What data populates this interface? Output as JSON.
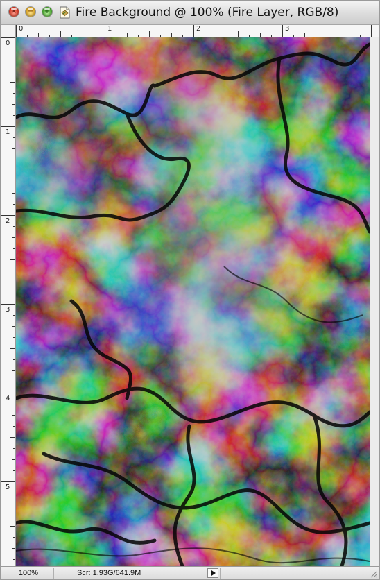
{
  "window": {
    "title": "Fire Background @ 100% (Fire Layer, RGB/8)"
  },
  "title_bar_buttons": {
    "close_icon": "close-icon",
    "minimize_icon": "minimize-icon",
    "zoom_icon": "zoom-icon",
    "document_icon": "document-proxy-icon"
  },
  "rulers": {
    "horizontal_labels": [
      "0",
      "1",
      "2",
      "3"
    ],
    "vertical_labels": [
      "0",
      "1",
      "2",
      "3",
      "4",
      "5"
    ]
  },
  "canvas": {
    "layer_name": "Fire Layer",
    "content": "difference-clouds-texture"
  },
  "status_bar": {
    "zoom": "100%",
    "doc_info": "Scr: 1.93G/641.9M",
    "menu_arrow_icon": "play-arrow-icon"
  },
  "colors": {
    "window_bg": "#e8e8e8",
    "canvas_dark": "#0d0d0d",
    "canvas_light": "#b9b9b9"
  }
}
